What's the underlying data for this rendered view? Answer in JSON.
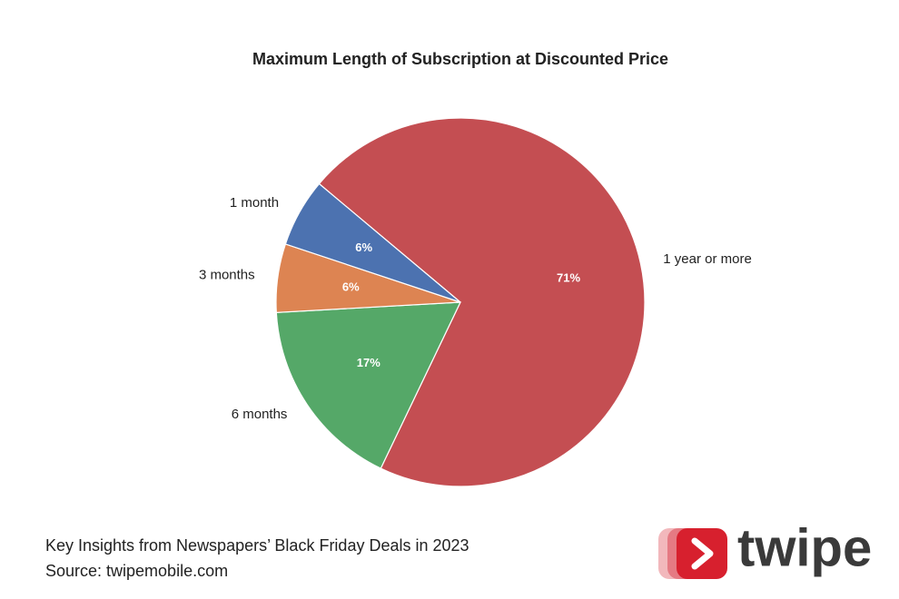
{
  "chart_data": {
    "type": "pie",
    "title": "Maximum Length of Subscription at Discounted Price",
    "categories": [
      "1 year or more",
      "6 months",
      "3 months",
      "1 month"
    ],
    "values": [
      71,
      17,
      6,
      6
    ],
    "value_labels": [
      "71%",
      "17%",
      "6%",
      "6%"
    ],
    "colors": [
      "#c44e52",
      "#55a868",
      "#dd8452",
      "#4c72b0"
    ],
    "start_angle": 310
  },
  "caption": [
    "Key Insights from Newspapers’ Black Friday Deals in 2023",
    "Source: twipemobile.com"
  ],
  "brand": "twipe"
}
